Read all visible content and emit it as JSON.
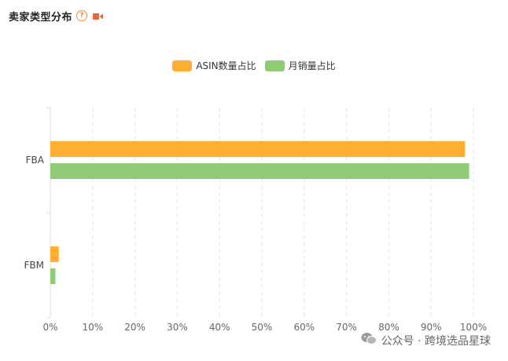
{
  "header": {
    "title": "卖家类型分布",
    "help_glyph": "?"
  },
  "icons": {
    "help": "question-circle-icon",
    "video": "video-camera-icon",
    "watermark": "wechat-icon"
  },
  "colors": {
    "accent": "#f0883b",
    "video": "#e8643c",
    "asin_series": "#ffad33",
    "sales_series": "#8fcc75"
  },
  "legend": [
    {
      "label": "ASIN数量占比",
      "color": "#ffad33"
    },
    {
      "label": "月销量占比",
      "color": "#8fcc75"
    }
  ],
  "chart_data": {
    "type": "bar",
    "orientation": "horizontal",
    "title": "",
    "categories": [
      "FBA",
      "FBM"
    ],
    "series": [
      {
        "name": "ASIN数量占比",
        "values": [
          98,
          2
        ]
      },
      {
        "name": "月销量占比",
        "values": [
          99,
          1.2
        ]
      }
    ],
    "xlim": [
      0,
      100
    ],
    "x_ticks": [
      "0%",
      "10%",
      "20%",
      "30%",
      "40%",
      "50%",
      "60%",
      "70%",
      "80%",
      "90%",
      "100%"
    ],
    "grid": "vertical-dashed",
    "legend_position": "top-center"
  },
  "watermark": {
    "text": "公众号 · 跨境选品星球"
  }
}
